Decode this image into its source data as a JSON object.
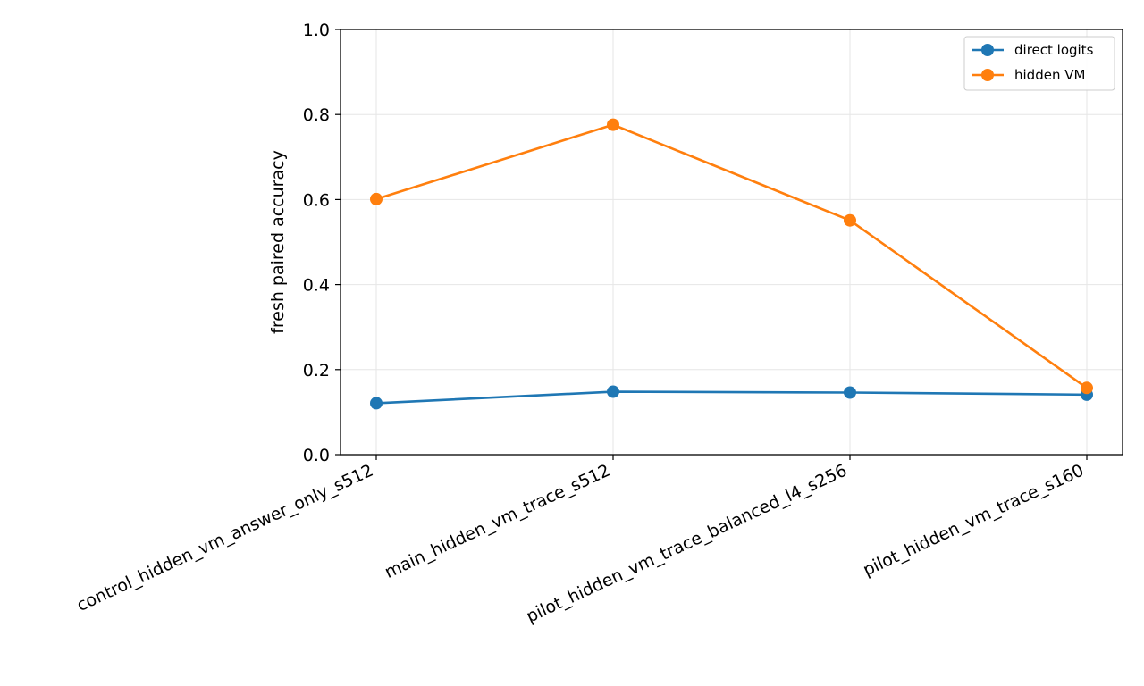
{
  "chart_data": {
    "type": "line",
    "title": "",
    "xlabel": "",
    "ylabel": "fresh paired accuracy",
    "categories": [
      "control_hidden_vm_answer_only_s512",
      "main_hidden_vm_trace_s512",
      "pilot_hidden_vm_trace_balanced_l4_s256",
      "pilot_hidden_vm_trace_s160"
    ],
    "series": [
      {
        "name": "direct logits",
        "color": "#1f77b4",
        "values": [
          0.121,
          0.148,
          0.146,
          0.141
        ]
      },
      {
        "name": "hidden VM",
        "color": "#ff7f0e",
        "values": [
          0.601,
          0.776,
          0.551,
          0.157
        ]
      }
    ],
    "ylim": [
      0.0,
      1.0
    ],
    "yticks": [
      "0.0",
      "0.2",
      "0.4",
      "0.6",
      "0.8",
      "1.0"
    ],
    "grid": true,
    "legend_position": "top-right"
  }
}
